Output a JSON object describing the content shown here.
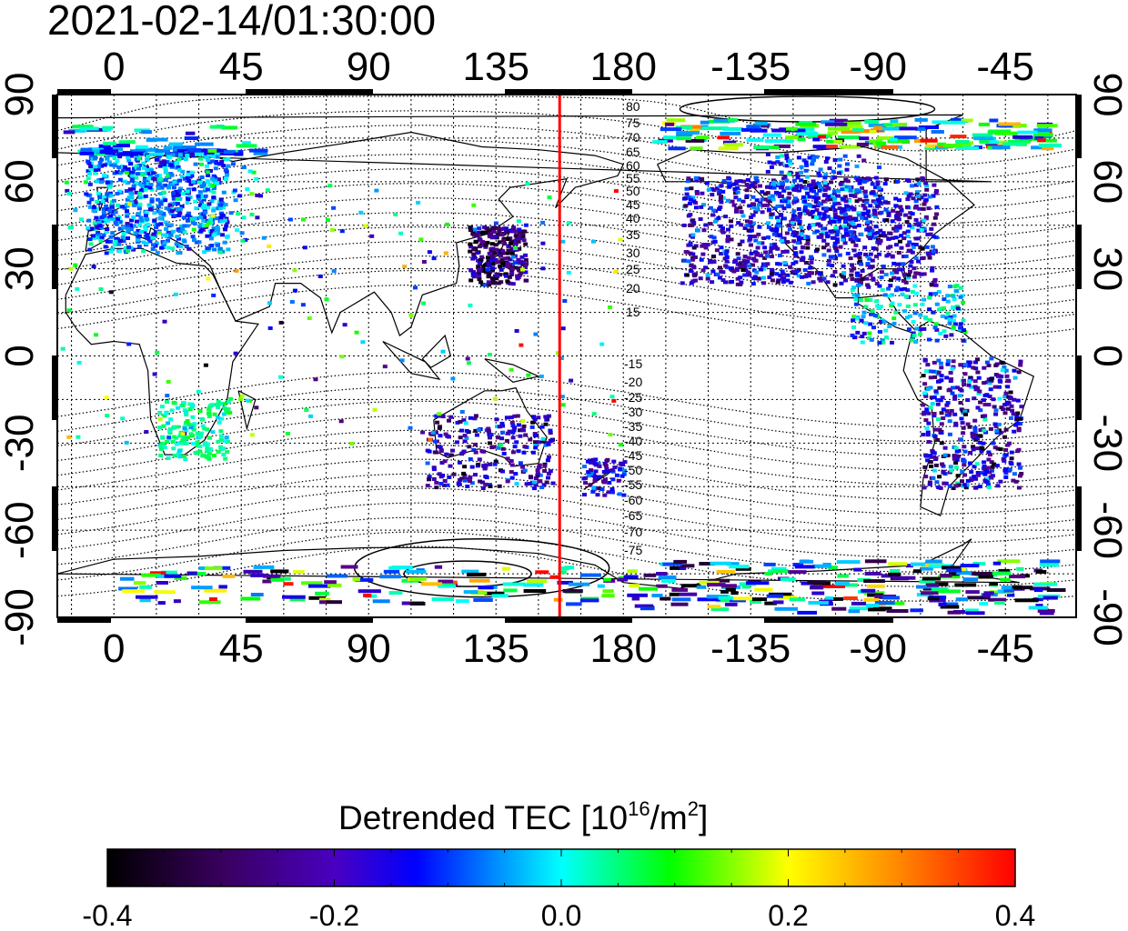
{
  "timestamp": "2021-02-14/01:30:00",
  "colors": {
    "terminator": "#ff0000",
    "frame": "#000000",
    "background": "#ffffff"
  },
  "map": {
    "top_lon_ticks": [
      "0",
      "45",
      "90",
      "135",
      "180",
      "-135",
      "-90",
      "-45"
    ],
    "bottom_lon_ticks": [
      "0",
      "45",
      "90",
      "135",
      "180",
      "-135",
      "-90",
      "-45"
    ],
    "left_lat_ticks": [
      "90",
      "60",
      "30",
      "0",
      "-30",
      "-60",
      "-90"
    ],
    "right_lat_ticks": [
      "90",
      "60",
      "30",
      "0",
      "-30",
      "-60",
      "-90"
    ],
    "contour_labels_north": [
      "80",
      "75",
      "70",
      "65",
      "60",
      "55",
      "50",
      "45",
      "40",
      "35",
      "30",
      "25",
      "20",
      "15"
    ],
    "contour_labels_south": [
      "-15",
      "-20",
      "-25",
      "-30",
      "-35",
      "-40",
      "-45",
      "-50",
      "-55",
      "-60",
      "-65",
      "-70",
      "-75"
    ],
    "terminator_longitude": 157.5
  },
  "colorbar": {
    "title_main": "Detrended TEC  [10",
    "title_exp1": "16",
    "title_mid": "/m",
    "title_exp2": "2",
    "title_end": "]",
    "ticks": [
      "-0.4",
      "-0.2",
      "0.0",
      "0.2",
      "0.4"
    ],
    "min": -0.4,
    "max": 0.4,
    "gradient": [
      "#000000",
      "#5a0090",
      "#0000ff",
      "#00ffff",
      "#00ff00",
      "#ffff00",
      "#ff0000"
    ]
  }
}
